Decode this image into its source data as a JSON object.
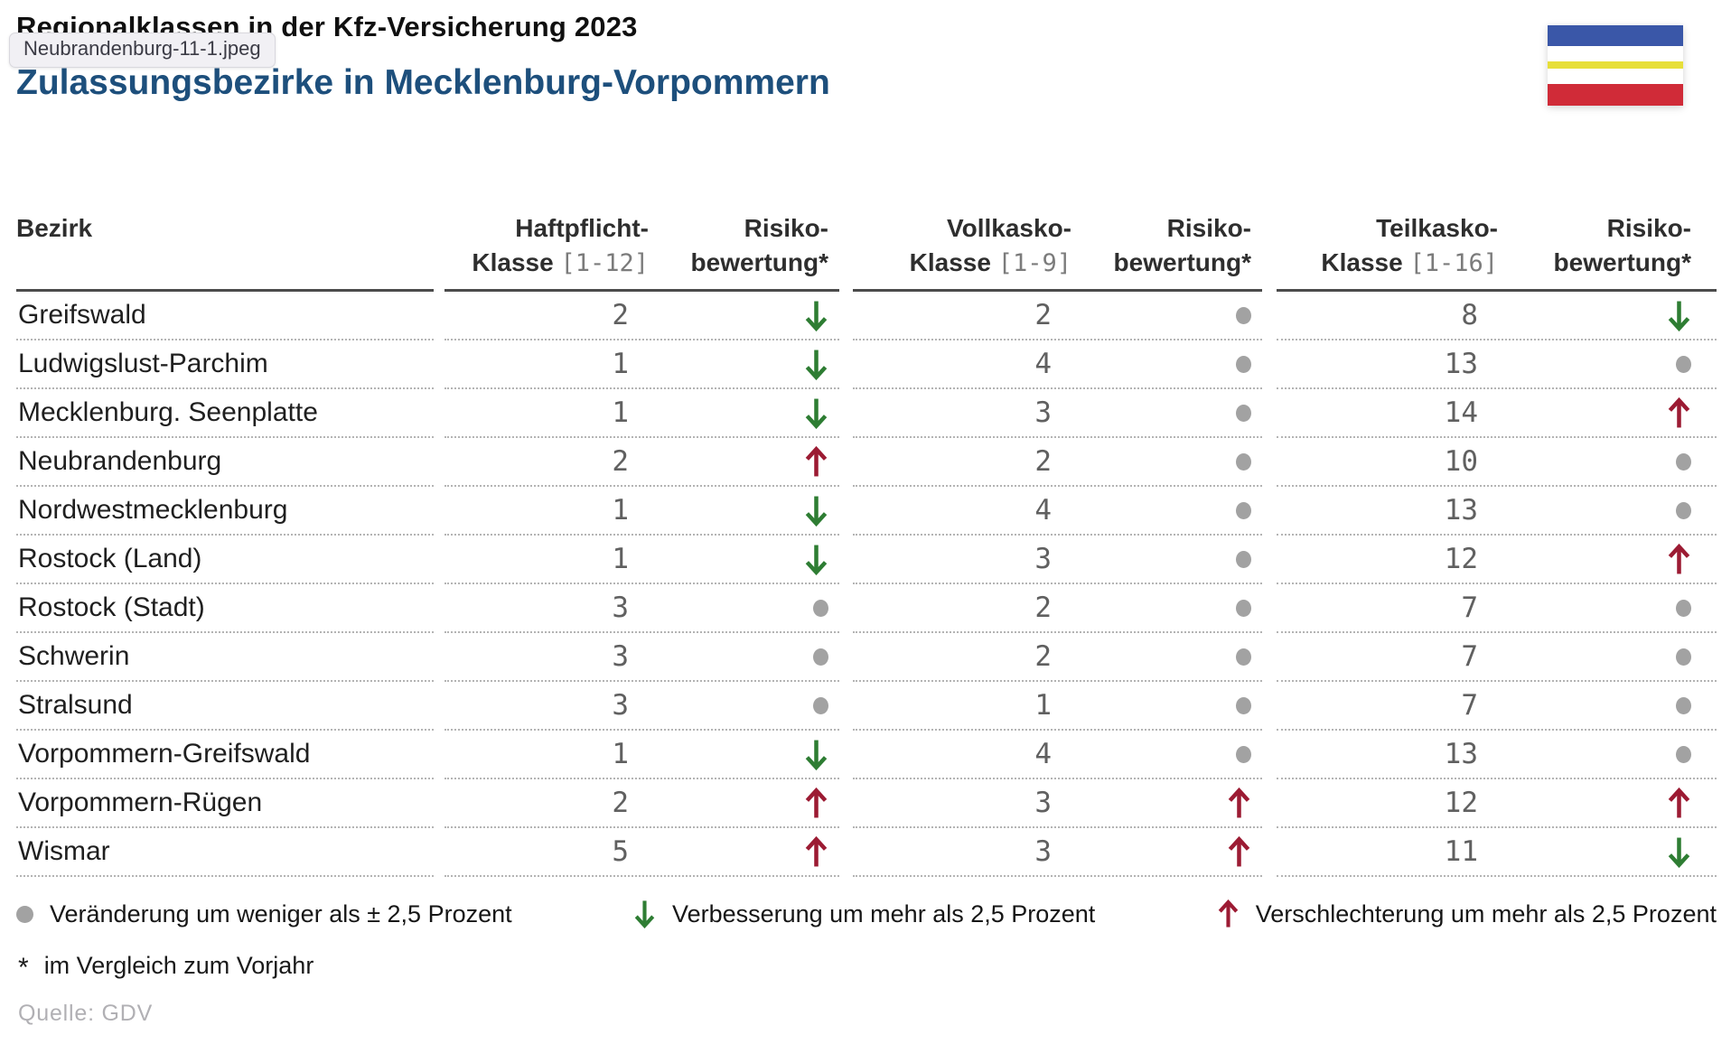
{
  "header": {
    "title": "Regionalklassen in der Kfz-Versicherung 2023",
    "subtitle": "Zulassungsbezirke in Mecklenburg-Vorpommern"
  },
  "tooltip": {
    "text": "Neubrandenburg-11-1.jpeg"
  },
  "flag": {
    "name": "mecklenburg-vorpommern-flag",
    "stripes": [
      {
        "color": "#3a57a8",
        "height": 26
      },
      {
        "color": "#ffffff",
        "height": 19
      },
      {
        "color": "#e7df39",
        "height": 9
      },
      {
        "color": "#ffffff",
        "height": 19
      },
      {
        "color": "#d02b38",
        "height": 27
      }
    ]
  },
  "table": {
    "columns": [
      {
        "line1": "Bezirk",
        "line2": "",
        "range": ""
      },
      {
        "line1": "Haftpflicht-",
        "line2": "Klasse",
        "range": "[1-12]"
      },
      {
        "line1": "Risiko-",
        "line2": "bewertung*",
        "range": ""
      },
      {
        "line1": "Vollkasko-",
        "line2": "Klasse",
        "range": "[1-9]"
      },
      {
        "line1": "Risiko-",
        "line2": "bewertung*",
        "range": ""
      },
      {
        "line1": "Teilkasko-",
        "line2": "Klasse",
        "range": "[1-16]"
      },
      {
        "line1": "Risiko-",
        "line2": "bewertung*",
        "range": ""
      }
    ]
  },
  "chart_data": {
    "type": "table",
    "title": "Regionalklassen in der Kfz-Versicherung 2023",
    "subtitle": "Zulassungsbezirke in Mecklenburg-Vorpommern",
    "columns": [
      "Bezirk",
      "Haftpflicht-Klasse [1-12]",
      "Risikobewertung*",
      "Vollkasko-Klasse [1-9]",
      "Risikobewertung*",
      "Teilkasko-Klasse [1-16]",
      "Risikobewertung*"
    ],
    "rows": [
      [
        "Greifswald",
        2,
        "down",
        2,
        "dot",
        8,
        "down"
      ],
      [
        "Ludwigslust-Parchim",
        1,
        "down",
        4,
        "dot",
        13,
        "dot"
      ],
      [
        "Mecklenburg. Seenplatte",
        1,
        "down",
        3,
        "dot",
        14,
        "up"
      ],
      [
        "Neubrandenburg",
        2,
        "up",
        2,
        "dot",
        10,
        "dot"
      ],
      [
        "Nordwestmecklenburg",
        1,
        "down",
        4,
        "dot",
        13,
        "dot"
      ],
      [
        "Rostock (Land)",
        1,
        "down",
        3,
        "dot",
        12,
        "up"
      ],
      [
        "Rostock (Stadt)",
        3,
        "dot",
        2,
        "dot",
        7,
        "dot"
      ],
      [
        "Schwerin",
        3,
        "dot",
        2,
        "dot",
        7,
        "dot"
      ],
      [
        "Stralsund",
        3,
        "dot",
        1,
        "dot",
        7,
        "dot"
      ],
      [
        "Vorpommern-Greifswald",
        1,
        "down",
        4,
        "dot",
        13,
        "dot"
      ],
      [
        "Vorpommern-Rügen",
        2,
        "up",
        3,
        "up",
        12,
        "up"
      ],
      [
        "Wismar",
        5,
        "up",
        3,
        "up",
        11,
        "down"
      ]
    ],
    "symbols": {
      "dot": "Veränderung um weniger als ± 2,5 Prozent",
      "down": "Verbesserung um mehr als 2,5 Prozent",
      "up": "Verschlechterung um mehr als 2,5 Prozent"
    }
  },
  "legend": {
    "items": [
      {
        "icon": "dot",
        "label": "Veränderung um weniger als ± 2,5 Prozent"
      },
      {
        "icon": "down",
        "label": "Verbesserung um mehr als 2,5 Prozent"
      },
      {
        "icon": "up",
        "label": "Verschlechterung um mehr als 2,5 Prozent"
      }
    ]
  },
  "footnote": {
    "marker": "*",
    "text": "im Vergleich zum Vorjahr"
  },
  "source": "Quelle: GDV",
  "colors": {
    "improve_green": "#2e7d33",
    "worsen_red": "#9c1b33",
    "neutral_gray": "#a2a2a2",
    "subtitle_blue": "#1d4f7c"
  }
}
